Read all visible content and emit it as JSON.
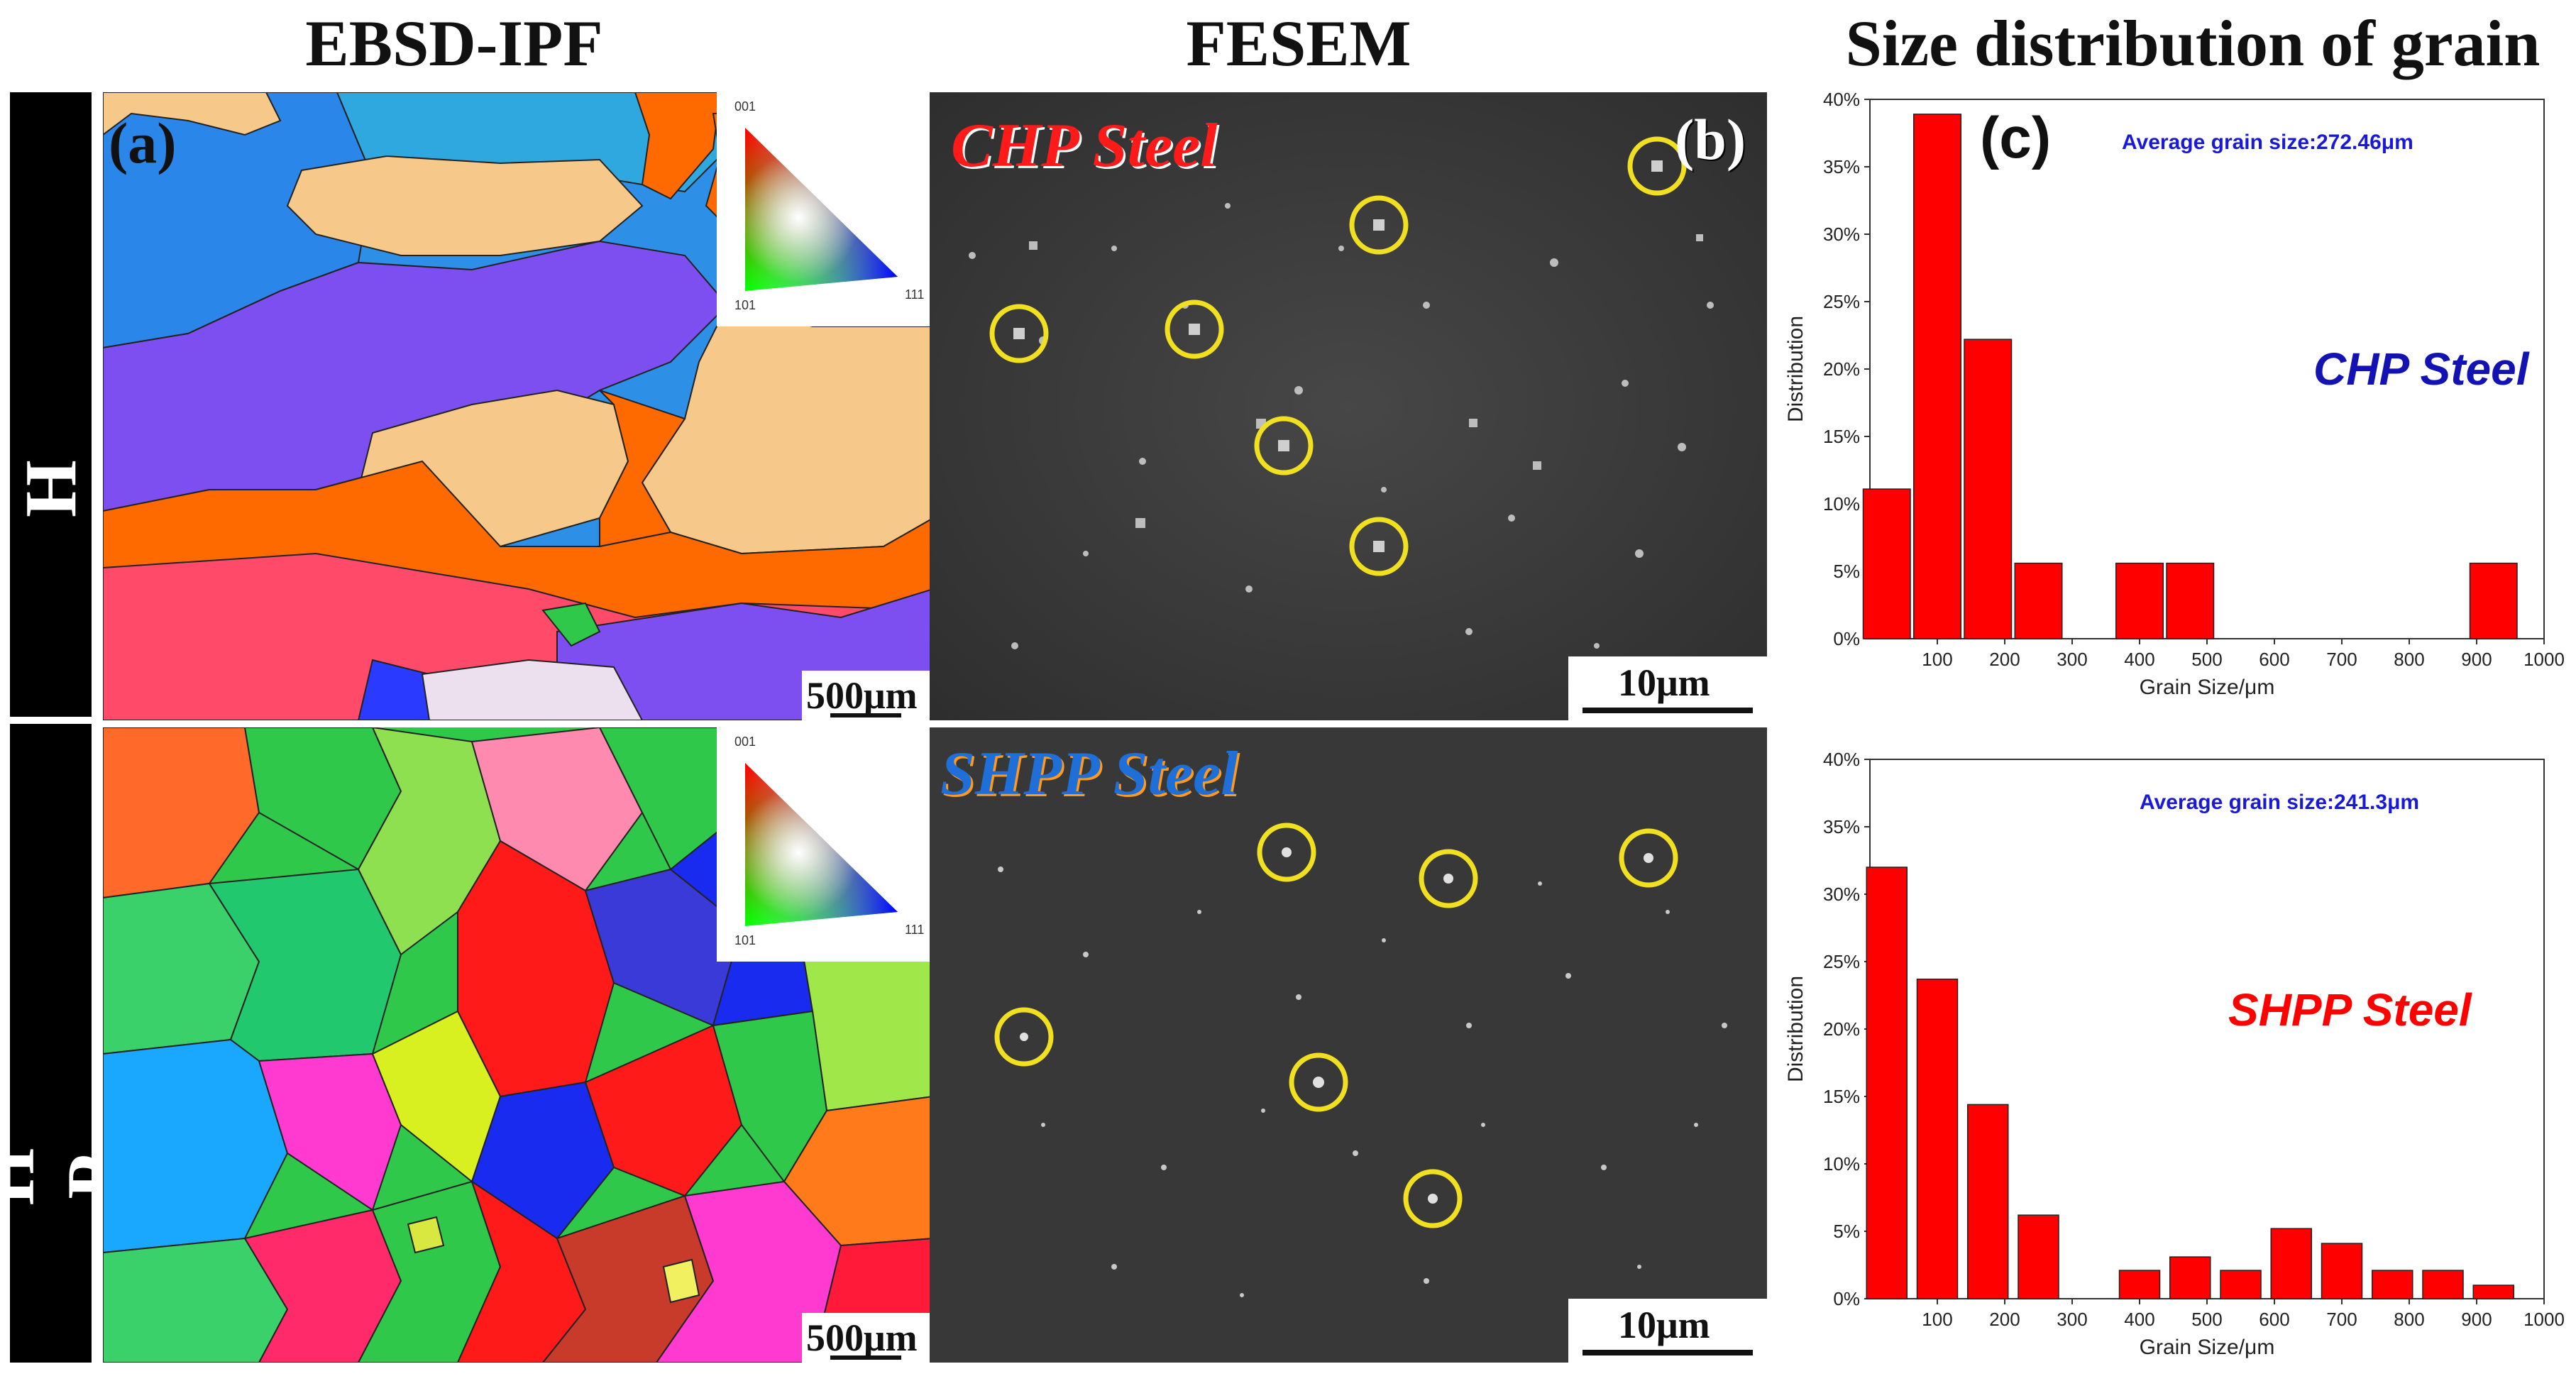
{
  "figure": {
    "column_titles": {
      "ebsd": "EBSD-IPF",
      "fesem": "FESEM",
      "size": "Size distribution of grain"
    },
    "row_labels": {
      "top": "C H P",
      "bottom": "S H P P"
    },
    "panel_labels": {
      "a": "(a)",
      "b": "(b)",
      "c": "(c)"
    },
    "ebsd": {
      "scale_bar_top": "500μm",
      "scale_bar_bottom": "500μm",
      "ipf_key": {
        "v001": "001",
        "v101": "101",
        "v111": "111"
      }
    },
    "fesem": {
      "top_title": "CHP Steel",
      "bottom_title": "SHPP Steel",
      "scale_bar_top": "10μm",
      "scale_bar_bottom": "10μm",
      "circle_color": "#f0e020"
    },
    "colors": {
      "bar_fill": "#ff0000",
      "avg_text": "#1a1ad6",
      "chp_label": "#1313b4",
      "shpp_label": "#ff0000"
    }
  },
  "chart_data": [
    {
      "type": "bar",
      "title": "",
      "annotation": "Average grain size:272.46μm",
      "series_label": "CHP Steel",
      "xlabel": "Grain Size/μm",
      "ylabel": "Distribution",
      "xlim": [
        0,
        1000
      ],
      "ylim": [
        0,
        40
      ],
      "x_ticks": [
        "100",
        "200",
        "300",
        "400",
        "500",
        "600",
        "700",
        "800",
        "900",
        "1000"
      ],
      "y_ticks": [
        "0%",
        "5%",
        "10%",
        "15%",
        "20%",
        "25%",
        "30%",
        "35%",
        "40%"
      ],
      "bin_centers": [
        25,
        100,
        175,
        250,
        400,
        475,
        925
      ],
      "bin_width": 70,
      "values": [
        11.1,
        38.9,
        22.2,
        5.6,
        5.6,
        5.6,
        5.6
      ]
    },
    {
      "type": "bar",
      "title": "",
      "annotation": "Average grain size:241.3μm",
      "series_label": "SHPP Steel",
      "xlabel": "Grain Size/μm",
      "ylabel": "Distribution",
      "xlim": [
        0,
        1000
      ],
      "ylim": [
        0,
        40
      ],
      "x_ticks": [
        "100",
        "200",
        "300",
        "400",
        "500",
        "600",
        "700",
        "800",
        "900",
        "1000"
      ],
      "y_ticks": [
        "0%",
        "5%",
        "10%",
        "15%",
        "20%",
        "25%",
        "30%",
        "35%",
        "40%"
      ],
      "bin_centers": [
        25,
        100,
        175,
        250,
        400,
        475,
        550,
        625,
        700,
        775,
        850,
        925
      ],
      "bin_width": 60,
      "values": [
        32.0,
        23.7,
        14.4,
        6.2,
        2.1,
        3.1,
        2.1,
        5.2,
        4.1,
        2.1,
        2.1,
        1.0
      ]
    }
  ]
}
